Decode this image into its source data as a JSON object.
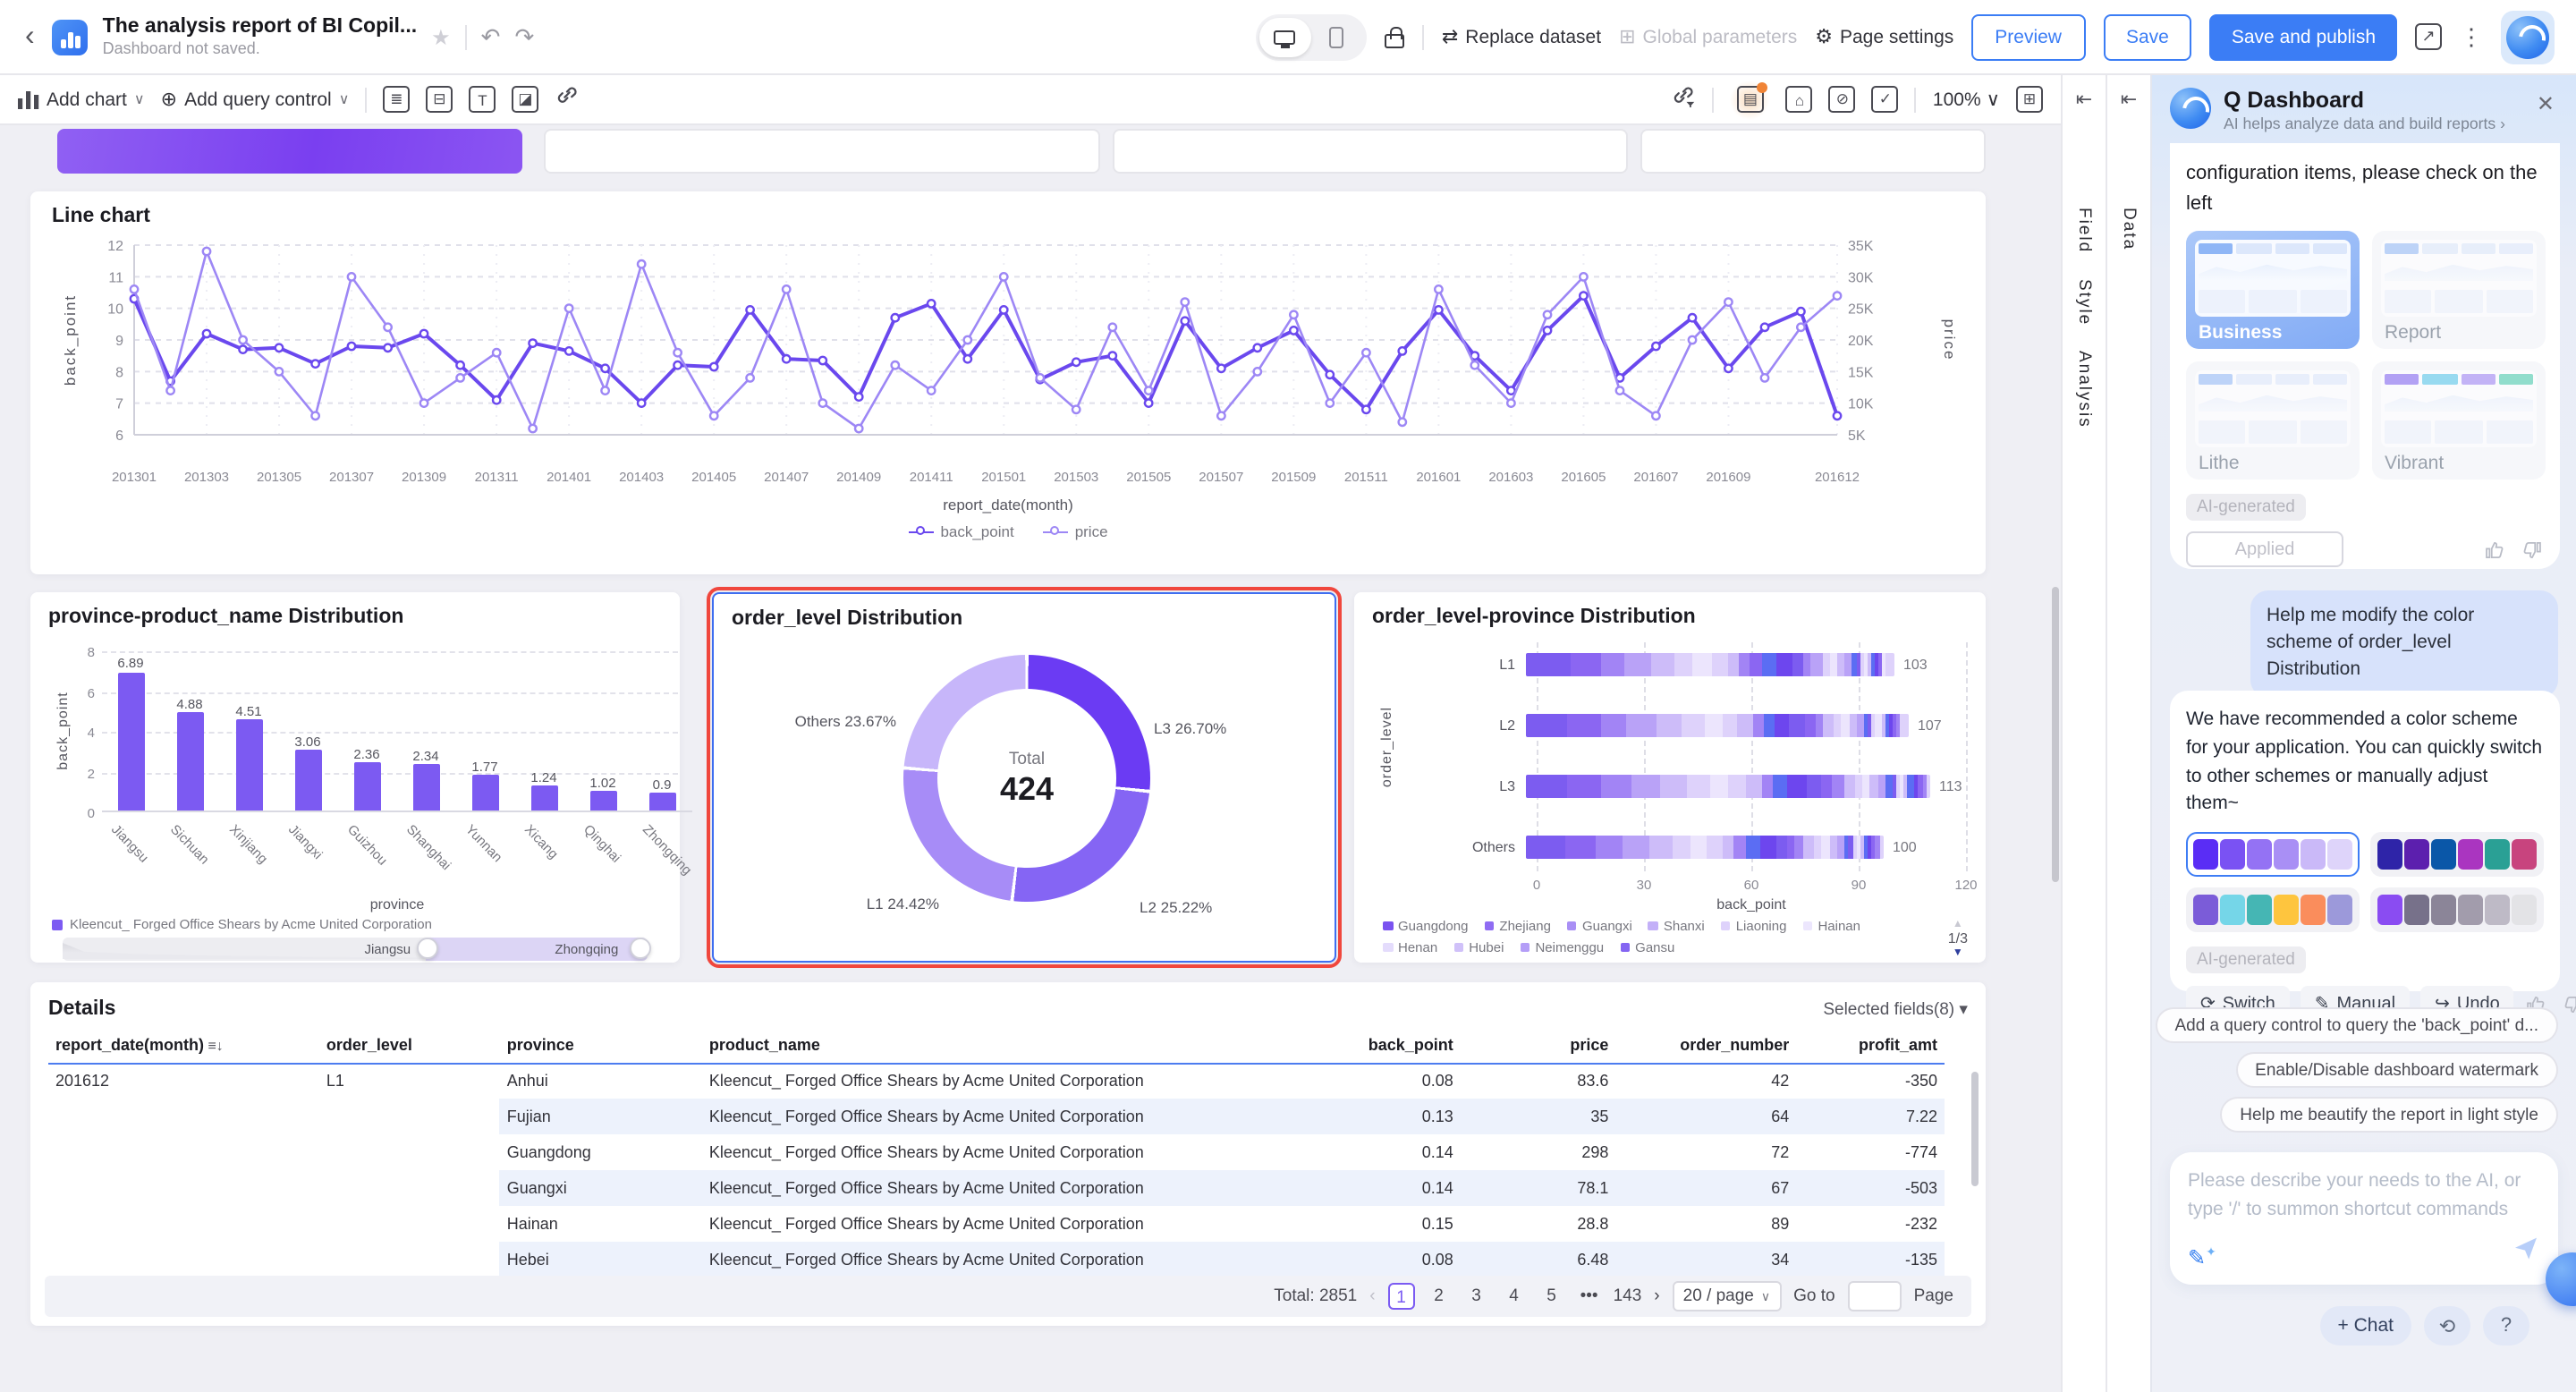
{
  "header": {
    "title": "The analysis report of BI Copil...",
    "subtitle": "Dashboard not saved.",
    "replace_dataset": "Replace dataset",
    "global_parameters": "Global parameters",
    "page_settings": "Page settings",
    "preview": "Preview",
    "save": "Save",
    "save_and_publish": "Save and publish"
  },
  "toolbar": {
    "add_chart": "Add chart",
    "add_query_control": "Add query control",
    "zoom_level": "100%"
  },
  "rails": {
    "panel_tabs": [
      "Field",
      "Style",
      "Analysis"
    ],
    "data_tab": "Data"
  },
  "chart_data": [
    {
      "type": "line",
      "title": "Line chart",
      "xlabel": "report_date(month)",
      "ylabel": "back_point",
      "y2label": "price",
      "ylim": [
        6,
        12
      ],
      "yticks": [
        6,
        7,
        8,
        9,
        10,
        11,
        12
      ],
      "y2ticks": [
        "5K",
        "10K",
        "15K",
        "20K",
        "25K",
        "30K",
        "35K"
      ],
      "y2lim_k": [
        5,
        35
      ],
      "x_tick_labels": [
        "201301",
        "201303",
        "201305",
        "201307",
        "201309",
        "201311",
        "201401",
        "201403",
        "201405",
        "201407",
        "201409",
        "201411",
        "201501",
        "201503",
        "201505",
        "201507",
        "201509",
        "201511",
        "201601",
        "201603",
        "201605",
        "201607",
        "201609",
        "201612"
      ],
      "legend": [
        "back_point",
        "price"
      ],
      "colors": {
        "back_point": "#6a48ee",
        "price": "#9d87f5"
      },
      "series": [
        {
          "name": "back_point",
          "axis": "left",
          "values": [
            10.3,
            7.7,
            9.2,
            8.7,
            8.75,
            8.25,
            8.8,
            8.75,
            9.2,
            8.2,
            7.1,
            8.9,
            8.65,
            8.1,
            7.0,
            8.2,
            8.15,
            9.95,
            8.4,
            8.35,
            7.2,
            9.7,
            10.15,
            8.4,
            9.95,
            7.75,
            8.3,
            8.5,
            7.0,
            9.6,
            8.1,
            8.75,
            9.3,
            7.9,
            6.8,
            8.65,
            9.95,
            8.5,
            7.4,
            9.3,
            10.4,
            7.8,
            8.8,
            9.7,
            8.1,
            9.4,
            9.9,
            6.6
          ]
        },
        {
          "name": "price",
          "axis": "right",
          "unit": "K",
          "values": [
            28,
            12,
            34,
            20,
            15,
            8,
            30,
            22,
            10,
            14,
            18,
            6,
            25,
            12,
            32,
            18,
            8,
            14,
            28,
            10,
            6,
            16,
            12,
            20,
            30,
            14,
            9,
            22,
            12,
            26,
            8,
            15,
            24,
            10,
            18,
            7,
            28,
            16,
            10,
            24,
            30,
            12,
            8,
            20,
            26,
            14,
            22,
            27
          ]
        }
      ]
    },
    {
      "type": "bar",
      "title": "province-product_name Distribution",
      "xlabel": "province",
      "ylabel": "back_point",
      "ylim": [
        0,
        8
      ],
      "yticks": [
        0,
        2,
        4,
        6,
        8
      ],
      "categories": [
        "Jiangsu",
        "Sichuan",
        "Xinjiang",
        "Jiangxi",
        "Guizhou",
        "Shanghai",
        "Yunnan",
        "Xicang",
        "Qinghai",
        "Zhongqing"
      ],
      "values": [
        6.89,
        4.88,
        4.51,
        3.06,
        2.36,
        2.34,
        1.77,
        1.24,
        1.02,
        0.9
      ],
      "bar_color": "#7c5af2",
      "legend_item": "Kleencut_ Forged Office Shears by Acme United Corporation",
      "slider": {
        "from": "Jiangsu",
        "to": "Zhongqing"
      }
    },
    {
      "type": "pie",
      "title": "order_level Distribution",
      "center_label": "Total",
      "center_value": "424",
      "slices": [
        {
          "label": "L3",
          "pct": 26.7,
          "color": "#6b3bf3"
        },
        {
          "label": "L2",
          "pct": 25.22,
          "color": "#8565f4"
        },
        {
          "label": "L1",
          "pct": 24.42,
          "color": "#a78cf7"
        },
        {
          "label": "Others",
          "pct": 23.67,
          "color": "#c7b6fa"
        }
      ]
    },
    {
      "type": "bar",
      "orientation": "horizontal-stacked",
      "title": "order_level-province Distribution",
      "xlabel": "back_point",
      "ylabel": "order_level",
      "xlim": [
        0,
        120
      ],
      "xticks": [
        0,
        30,
        60,
        90,
        120
      ],
      "categories": [
        "L1",
        "L2",
        "L3",
        "Others"
      ],
      "totals": [
        103,
        107,
        113,
        100
      ],
      "shades": [
        "#6d46ee",
        "#8b66f2",
        "#a284f5",
        "#b9a2f7",
        "#cdbcf9",
        "#ded2fb",
        "#ece5fd",
        "#d8c9fa",
        "#5b6df3",
        "#7c5cf0",
        "#9a7df4"
      ],
      "segments": [
        [
          [
            12,
            9
          ],
          [
            8,
            1
          ],
          [
            6,
            2
          ],
          [
            7,
            3
          ],
          [
            6,
            4
          ],
          [
            5,
            5
          ],
          [
            5,
            6
          ],
          [
            4,
            5
          ],
          [
            3,
            4
          ],
          [
            3,
            2
          ],
          [
            3,
            1
          ],
          [
            4,
            8
          ],
          [
            4,
            0
          ],
          [
            3,
            9
          ],
          [
            2,
            2
          ],
          [
            3,
            3
          ],
          [
            2,
            5
          ],
          [
            2,
            6
          ],
          [
            2,
            4
          ],
          [
            2,
            3
          ],
          [
            1,
            8
          ],
          [
            1,
            9
          ],
          [
            1,
            5
          ],
          [
            1,
            6
          ],
          [
            1,
            4
          ],
          [
            1,
            8
          ],
          [
            1,
            0
          ],
          [
            1,
            1
          ],
          [
            1,
            6
          ],
          [
            2,
            5
          ]
        ],
        [
          [
            11,
            9
          ],
          [
            9,
            1
          ],
          [
            7,
            2
          ],
          [
            8,
            3
          ],
          [
            7,
            4
          ],
          [
            6,
            5
          ],
          [
            5,
            6
          ],
          [
            4,
            5
          ],
          [
            4,
            4
          ],
          [
            3,
            2
          ],
          [
            3,
            8
          ],
          [
            4,
            0
          ],
          [
            4,
            9
          ],
          [
            3,
            1
          ],
          [
            2,
            2
          ],
          [
            3,
            4
          ],
          [
            2,
            5
          ],
          [
            2,
            6
          ],
          [
            2,
            4
          ],
          [
            2,
            3
          ],
          [
            1,
            8
          ],
          [
            1,
            9
          ],
          [
            1,
            5
          ],
          [
            2,
            6
          ],
          [
            1,
            4
          ],
          [
            1,
            8
          ],
          [
            1,
            0
          ],
          [
            1,
            1
          ],
          [
            1,
            2
          ],
          [
            2,
            5
          ]
        ],
        [
          [
            11,
            9
          ],
          [
            9,
            1
          ],
          [
            8,
            2
          ],
          [
            8,
            3
          ],
          [
            7,
            4
          ],
          [
            6,
            5
          ],
          [
            5,
            6
          ],
          [
            5,
            5
          ],
          [
            4,
            4
          ],
          [
            3,
            2
          ],
          [
            4,
            8
          ],
          [
            5,
            0
          ],
          [
            4,
            9
          ],
          [
            3,
            1
          ],
          [
            3,
            2
          ],
          [
            3,
            4
          ],
          [
            2,
            5
          ],
          [
            2,
            6
          ],
          [
            2,
            4
          ],
          [
            2,
            3
          ],
          [
            2,
            8
          ],
          [
            1,
            9
          ],
          [
            1,
            5
          ],
          [
            1,
            6
          ],
          [
            1,
            4
          ],
          [
            2,
            8
          ],
          [
            1,
            0
          ],
          [
            1,
            1
          ],
          [
            1,
            2
          ],
          [
            1,
            5
          ]
        ],
        [
          [
            10,
            9
          ],
          [
            8,
            1
          ],
          [
            7,
            2
          ],
          [
            7,
            3
          ],
          [
            6,
            4
          ],
          [
            5,
            5
          ],
          [
            4,
            6
          ],
          [
            4,
            5
          ],
          [
            3,
            4
          ],
          [
            3,
            2
          ],
          [
            4,
            8
          ],
          [
            4,
            0
          ],
          [
            3,
            9
          ],
          [
            2,
            1
          ],
          [
            2,
            2
          ],
          [
            3,
            4
          ],
          [
            2,
            5
          ],
          [
            2,
            6
          ],
          [
            2,
            4
          ],
          [
            2,
            3
          ],
          [
            1,
            8
          ],
          [
            1,
            9
          ],
          [
            1,
            5
          ],
          [
            1,
            6
          ],
          [
            1,
            4
          ],
          [
            1,
            8
          ],
          [
            1,
            0
          ],
          [
            1,
            1
          ],
          [
            1,
            2
          ],
          [
            1,
            5
          ]
        ]
      ],
      "legend": [
        {
          "name": "Guangdong",
          "color": "#7a52f0"
        },
        {
          "name": "Zhejiang",
          "color": "#8f6cf3"
        },
        {
          "name": "Guangxi",
          "color": "#a98ff5"
        },
        {
          "name": "Shanxi",
          "color": "#c3b0f8"
        },
        {
          "name": "Liaoning",
          "color": "#ded2fb"
        },
        {
          "name": "Hainan",
          "color": "#ece6fd"
        },
        {
          "name": "Henan",
          "color": "#e4dcfc"
        },
        {
          "name": "Hubei",
          "color": "#d0c1f9"
        },
        {
          "name": "Neimenggu",
          "color": "#b49ef7"
        },
        {
          "name": "Gansu",
          "color": "#8465f2"
        }
      ],
      "legend_page": "1/3"
    }
  ],
  "details": {
    "title": "Details",
    "selected_fields": "Selected fields(8)",
    "columns": [
      "report_date(month)",
      "order_level",
      "province",
      "product_name",
      "back_point",
      "price",
      "order_number",
      "profit_amt"
    ],
    "rows": [
      [
        "201612",
        "L1",
        "Anhui",
        "Kleencut_ Forged Office Shears by Acme United Corporation",
        "0.08",
        "83.6",
        "42",
        "-350"
      ],
      [
        "",
        "",
        "Fujian",
        "Kleencut_ Forged Office Shears by Acme United Corporation",
        "0.13",
        "35",
        "64",
        "7.22"
      ],
      [
        "",
        "",
        "Guangdong",
        "Kleencut_ Forged Office Shears by Acme United Corporation",
        "0.14",
        "298",
        "72",
        "-774"
      ],
      [
        "",
        "",
        "Guangxi",
        "Kleencut_ Forged Office Shears by Acme United Corporation",
        "0.14",
        "78.1",
        "67",
        "-503"
      ],
      [
        "",
        "",
        "Hainan",
        "Kleencut_ Forged Office Shears by Acme United Corporation",
        "0.15",
        "28.8",
        "89",
        "-232"
      ],
      [
        "",
        "",
        "Hebei",
        "Kleencut_ Forged Office Shears by Acme United Corporation",
        "0.08",
        "6.48",
        "34",
        "-135"
      ]
    ],
    "pagination": {
      "total": "Total: 2851",
      "pages": [
        "1",
        "2",
        "3",
        "4",
        "5",
        "•••",
        "143"
      ],
      "active_page": "1",
      "page_size": "20 / page",
      "goto_label": "Go to",
      "page_label": "Page"
    }
  },
  "ai_panel": {
    "title": "Q Dashboard",
    "subtitle": "AI helps analyze data and build reports",
    "intro_overflow": "configuration items, please check on the left",
    "templates": [
      {
        "label": "Business",
        "selected": true
      },
      {
        "label": "Report",
        "selected": false
      },
      {
        "label": "Lithe",
        "selected": false
      },
      {
        "label": "Vibrant",
        "selected": false
      }
    ],
    "ai_generated": "AI-generated",
    "applied": "Applied",
    "user_message": "Help me modify the color scheme of order_level Distribution",
    "assistant_message": "We have recommended a color scheme for your application. You can quickly switch to other schemes or manually adjust them~",
    "palettes": [
      {
        "selected": true,
        "colors": [
          "#5a2df5",
          "#7a52f3",
          "#9472f4",
          "#a98ff5",
          "#cab9f8",
          "#ded4fa"
        ]
      },
      {
        "selected": false,
        "colors": [
          "#2e24a8",
          "#5c1fae",
          "#0a57a8",
          "#aa35c0",
          "#2aa095",
          "#c8447e"
        ]
      },
      {
        "selected": false,
        "colors": [
          "#7b5cd8",
          "#75d6e8",
          "#45b6b4",
          "#fec53e",
          "#fa8d5c",
          "#9c99da"
        ]
      },
      {
        "selected": false,
        "colors": [
          "#8a4cf2",
          "#77718a",
          "#8b8598",
          "#a29cac",
          "#bebac6",
          "#e3e3e6"
        ]
      }
    ],
    "actions": {
      "switch": "Switch",
      "manual": "Manual",
      "undo": "Undo"
    },
    "suggestions": [
      "Add a query control to query the 'back_point' d...",
      "Enable/Disable dashboard watermark",
      "Help me beautify the report in light style"
    ],
    "input_placeholder": "Please describe your needs to the AI, or type '/' to summon shortcut commands",
    "chat_button": "+ Chat"
  }
}
